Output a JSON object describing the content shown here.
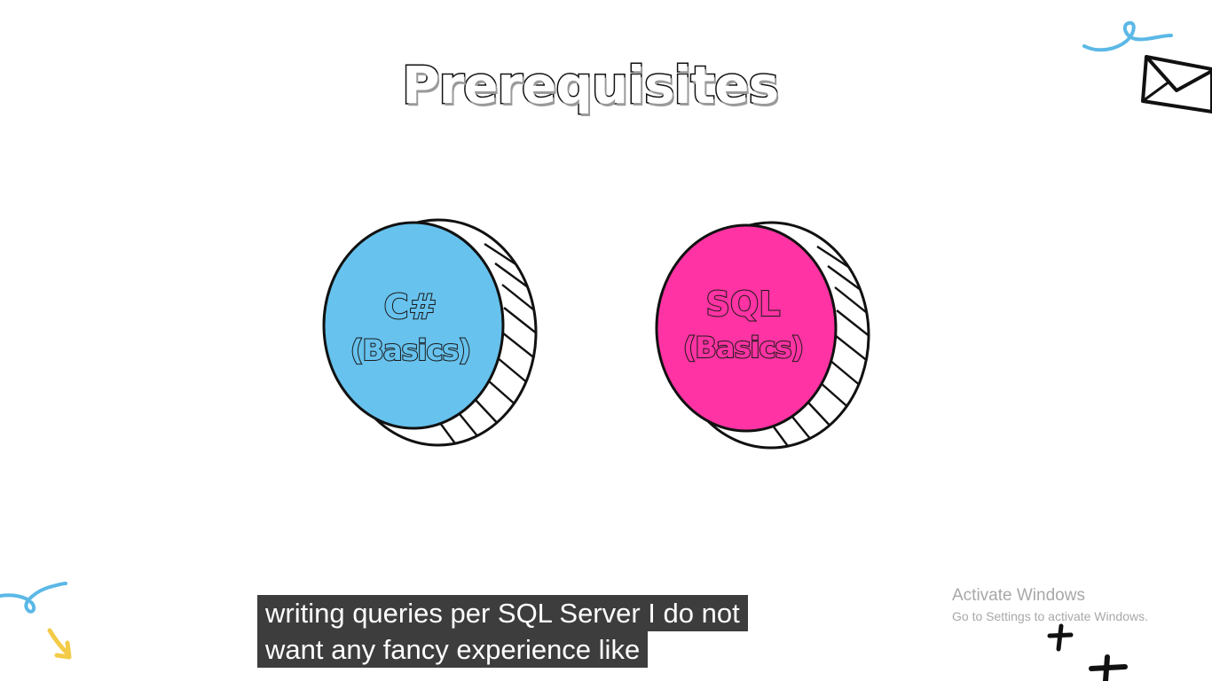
{
  "slide": {
    "title": "Prerequisites",
    "coins": [
      {
        "line1": "C#",
        "line2": "(Basics)",
        "face_color": "#67c2ee",
        "label_fill": "#67c2ee"
      },
      {
        "line1": "SQL",
        "line2": "(Basics)",
        "face_color": "#ff33a3",
        "label_fill": "#ff33a3"
      }
    ]
  },
  "subtitles": {
    "line1": "writing queries per SQL Server I do not",
    "line2": "want any fancy experience like"
  },
  "watermark": {
    "title": "Activate Windows",
    "subtitle": "Go to Settings to activate Windows."
  },
  "decorations": {
    "envelope": "envelope-icon",
    "squiggles": "squiggle-doodle",
    "arrow": "arrow-doodle",
    "plus": "plus-doodle",
    "accent_blue": "#5bb8e6",
    "accent_yellow": "#f3cb47"
  }
}
